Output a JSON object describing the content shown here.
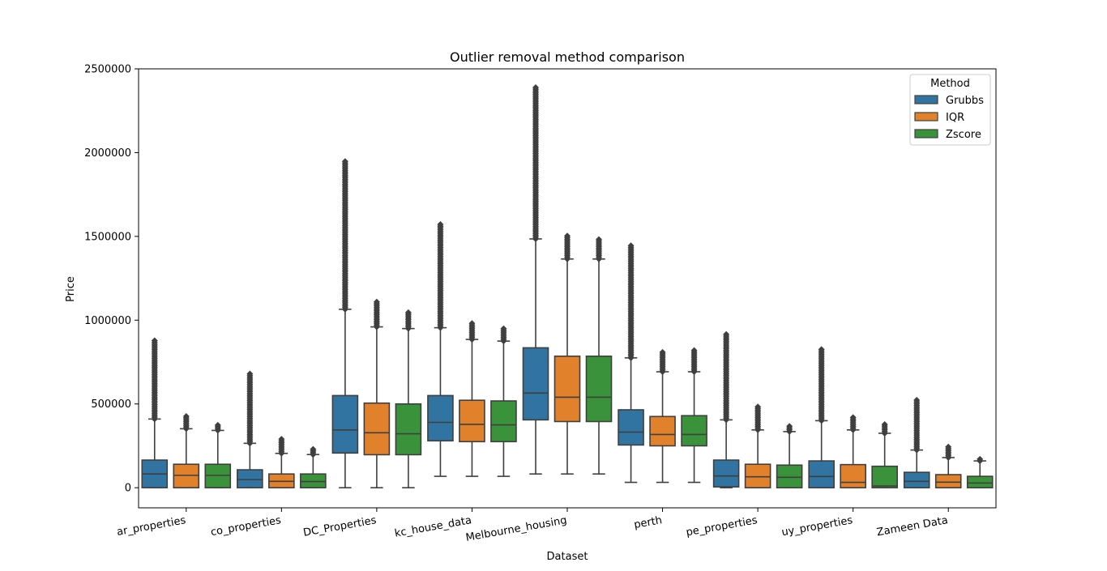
{
  "chart_data": {
    "type": "box",
    "title": "Outlier removal method comparison",
    "xlabel": "Dataset",
    "ylabel": "Price",
    "ylim": [
      -120000,
      2500000
    ],
    "yticks": [
      0,
      500000,
      1000000,
      1500000,
      2000000,
      2500000
    ],
    "ytick_labels": [
      "0",
      "500000",
      "1000000",
      "1500000",
      "2000000",
      "2500000"
    ],
    "categories": [
      "ar_properties",
      "co_properties",
      "DC_Properties",
      "kc_house_data",
      "Melbourne_housing",
      "perth",
      "pe_properties",
      "uy_properties",
      "Zameen Data"
    ],
    "legend": {
      "title": "Method",
      "placement": "top-right"
    },
    "series": [
      {
        "name": "Grubbs",
        "color": "#3274a1",
        "boxes": [
          {
            "q1": 0,
            "median": 82000,
            "q3": 165000,
            "whislo": 0,
            "whishi": 410000,
            "flier_min": 410000,
            "flier_max": 880000
          },
          {
            "q1": 0,
            "median": 48000,
            "q3": 107000,
            "whislo": 0,
            "whishi": 265000,
            "flier_min": 265000,
            "flier_max": 680000
          },
          {
            "q1": 207000,
            "median": 345000,
            "q3": 550000,
            "whislo": 0,
            "whishi": 1065000,
            "flier_min": 1065000,
            "flier_max": 1950000
          },
          {
            "q1": 280000,
            "median": 390000,
            "q3": 550000,
            "whislo": 68000,
            "whishi": 955000,
            "flier_min": 955000,
            "flier_max": 1580000
          },
          {
            "q1": 405000,
            "median": 565000,
            "q3": 835000,
            "whislo": 82000,
            "whishi": 1485000,
            "flier_min": 1485000,
            "flier_max": 2390000
          },
          {
            "q1": 255000,
            "median": 332000,
            "q3": 465000,
            "whislo": 32000,
            "whishi": 775000,
            "flier_min": 775000,
            "flier_max": 1450000
          },
          {
            "q1": 5000,
            "median": 70000,
            "q3": 165000,
            "whislo": 0,
            "whishi": 405000,
            "flier_min": 405000,
            "flier_max": 925000
          },
          {
            "q1": 0,
            "median": 67000,
            "q3": 160000,
            "whislo": 0,
            "whishi": 400000,
            "flier_min": 400000,
            "flier_max": 835000
          },
          {
            "q1": 0,
            "median": 38000,
            "q3": 92000,
            "whislo": 0,
            "whishi": 225000,
            "flier_min": 225000,
            "flier_max": 530000
          }
        ]
      },
      {
        "name": "IQR",
        "color": "#e1812c",
        "boxes": [
          {
            "q1": 0,
            "median": 74000,
            "q3": 140000,
            "whislo": 0,
            "whishi": 352000,
            "flier_min": 352000,
            "flier_max": 435000
          },
          {
            "q1": 0,
            "median": 38000,
            "q3": 82000,
            "whislo": 0,
            "whishi": 205000,
            "flier_min": 205000,
            "flier_max": 300000
          },
          {
            "q1": 197000,
            "median": 328000,
            "q3": 505000,
            "whislo": 0,
            "whishi": 960000,
            "flier_min": 960000,
            "flier_max": 1110000
          },
          {
            "q1": 275000,
            "median": 378000,
            "q3": 522000,
            "whislo": 68000,
            "whishi": 885000,
            "flier_min": 885000,
            "flier_max": 985000
          },
          {
            "q1": 395000,
            "median": 540000,
            "q3": 785000,
            "whislo": 82000,
            "whishi": 1365000,
            "flier_min": 1365000,
            "flier_max": 1505000
          },
          {
            "q1": 250000,
            "median": 318000,
            "q3": 425000,
            "whislo": 32000,
            "whishi": 692000,
            "flier_min": 692000,
            "flier_max": 815000
          },
          {
            "q1": 0,
            "median": 65000,
            "q3": 140000,
            "whislo": 0,
            "whishi": 345000,
            "flier_min": 345000,
            "flier_max": 490000
          },
          {
            "q1": 0,
            "median": 32000,
            "q3": 138000,
            "whislo": 0,
            "whishi": 345000,
            "flier_min": 345000,
            "flier_max": 425000
          },
          {
            "q1": 0,
            "median": 33000,
            "q3": 78000,
            "whislo": 0,
            "whishi": 180000,
            "flier_min": 180000,
            "flier_max": 245000
          }
        ]
      },
      {
        "name": "Zscore",
        "color": "#3a923a",
        "boxes": [
          {
            "q1": 0,
            "median": 74000,
            "q3": 140000,
            "whislo": 0,
            "whishi": 342000,
            "flier_min": 342000,
            "flier_max": 375000
          },
          {
            "q1": 0,
            "median": 37000,
            "q3": 82000,
            "whislo": 0,
            "whishi": 198000,
            "flier_min": 198000,
            "flier_max": 232000
          },
          {
            "q1": 197000,
            "median": 322000,
            "q3": 500000,
            "whislo": 0,
            "whishi": 950000,
            "flier_min": 950000,
            "flier_max": 1055000
          },
          {
            "q1": 275000,
            "median": 375000,
            "q3": 518000,
            "whislo": 68000,
            "whishi": 875000,
            "flier_min": 875000,
            "flier_max": 950000
          },
          {
            "q1": 395000,
            "median": 540000,
            "q3": 785000,
            "whislo": 82000,
            "whishi": 1365000,
            "flier_min": 1365000,
            "flier_max": 1490000
          },
          {
            "q1": 250000,
            "median": 318000,
            "q3": 430000,
            "whislo": 32000,
            "whishi": 692000,
            "flier_min": 692000,
            "flier_max": 825000
          },
          {
            "q1": 0,
            "median": 62000,
            "q3": 135000,
            "whislo": 0,
            "whishi": 335000,
            "flier_min": 335000,
            "flier_max": 370000
          },
          {
            "q1": 0,
            "median": 10000,
            "q3": 128000,
            "whislo": 0,
            "whishi": 325000,
            "flier_min": 325000,
            "flier_max": 380000
          },
          {
            "q1": 0,
            "median": 28000,
            "q3": 68000,
            "whislo": 0,
            "whishi": 160000,
            "flier_min": 160000,
            "flier_max": 180000
          }
        ]
      }
    ]
  }
}
